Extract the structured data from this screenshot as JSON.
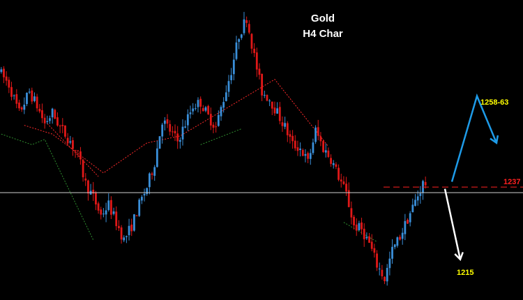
{
  "chart_data": {
    "type": "candlestick",
    "title": "Gold",
    "subtitle": "H4 Char",
    "colors": {
      "background": "#000000",
      "bull": "#3a8fd9",
      "bear": "#e01818",
      "grid_level": "#cfcfcf",
      "resistance": "#ff2020",
      "up_arrow": "#1e9be8",
      "down_arrow": "#ffffff",
      "label": "#ffff00",
      "red_zigzag": "#ff2a2a",
      "green_zigzag": "#2f8f2f"
    },
    "ylim": [
      1205,
      1290
    ],
    "reference_level": 1237,
    "resistance_label": "1237",
    "annotations": {
      "up_target_label": "1258-63",
      "down_target_label": "1215",
      "up_path": [
        [
          1238.5,
          0
        ],
        [
          1262.8,
          0
        ],
        [
          1249.5,
          0
        ]
      ],
      "down_path": [
        [
          1236.5,
          0
        ],
        [
          1216.5,
          0
        ]
      ]
    },
    "price_path": [
      [
        0,
        1270
      ],
      [
        4,
        1266
      ],
      [
        8,
        1258
      ],
      [
        12,
        1264
      ],
      [
        15,
        1260
      ],
      [
        18,
        1255
      ],
      [
        21,
        1258
      ],
      [
        24,
        1254
      ],
      [
        28,
        1250
      ],
      [
        31,
        1246
      ],
      [
        34,
        1238
      ],
      [
        37,
        1234
      ],
      [
        40,
        1229
      ],
      [
        43,
        1232
      ],
      [
        46,
        1227
      ],
      [
        49,
        1222
      ],
      [
        52,
        1226
      ],
      [
        55,
        1232
      ],
      [
        58,
        1237
      ],
      [
        61,
        1244
      ],
      [
        64,
        1256
      ],
      [
        67,
        1253
      ],
      [
        70,
        1250
      ],
      [
        73,
        1255
      ],
      [
        76,
        1260
      ],
      [
        79,
        1261
      ],
      [
        82,
        1257
      ],
      [
        85,
        1254
      ],
      [
        88,
        1262
      ],
      [
        91,
        1270
      ],
      [
        94,
        1280
      ],
      [
        97,
        1285
      ],
      [
        100,
        1274
      ],
      [
        103,
        1264
      ],
      [
        106,
        1262
      ],
      [
        109,
        1258
      ],
      [
        112,
        1254
      ],
      [
        115,
        1249
      ],
      [
        118,
        1248
      ],
      [
        121,
        1244
      ],
      [
        124,
        1253
      ],
      [
        127,
        1248
      ],
      [
        130,
        1245
      ],
      [
        133,
        1240
      ],
      [
        136,
        1235
      ],
      [
        139,
        1226
      ],
      [
        142,
        1225
      ],
      [
        145,
        1221
      ],
      [
        148,
        1215
      ],
      [
        151,
        1211
      ],
      [
        154,
        1219
      ],
      [
        157,
        1223
      ],
      [
        160,
        1228
      ],
      [
        163,
        1233
      ],
      [
        166,
        1238
      ]
    ],
    "red_zigzag": [
      [
        [
          9,
          1254.5
        ],
        [
          20,
          1252.0
        ],
        [
          40,
          1241.0
        ],
        [
          57,
          1249.5
        ],
        [
          70,
          1251.5
        ],
        [
          107,
          1267.5
        ],
        [
          128,
          1248.5
        ]
      ],
      [
        [
          18,
          1255.0
        ],
        [
          38,
          1240.0
        ]
      ]
    ],
    "green_zigzag": [
      [
        [
          0,
          1252.0
        ],
        [
          12,
          1249.0
        ],
        [
          17,
          1250.5
        ],
        [
          36,
          1222.0
        ]
      ],
      [
        [
          78,
          1249.0
        ],
        [
          94,
          1253.5
        ]
      ],
      [
        [
          134,
          1227.0
        ],
        [
          147,
          1221.5
        ]
      ]
    ]
  }
}
